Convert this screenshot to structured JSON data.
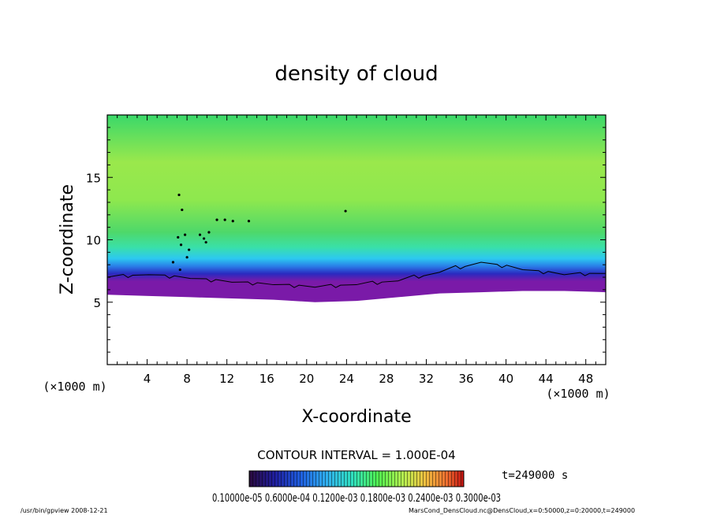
{
  "chart_data": {
    "type": "heatmap",
    "title": "density of cloud",
    "xlabel": "X-coordinate",
    "ylabel": "Z-coordinate",
    "x_unit": "(×1000 m)",
    "z_unit": "(×1000 m)",
    "xlim": [
      0,
      50
    ],
    "ylim": [
      0,
      20
    ],
    "x_ticks": [
      "4",
      "8",
      "12",
      "16",
      "20",
      "24",
      "28",
      "32",
      "36",
      "40",
      "44",
      "48"
    ],
    "y_ticks": [
      "5",
      "10",
      "15"
    ],
    "contour_interval": "CONTOUR INTERVAL = 1.000E-04",
    "time_label": "t=249000 s",
    "colorbar_labels": "0.10000e-05 0.6000e-04 0.1200e-03 0.1800e-03 0.2400e-03 0.3000e-03",
    "colorbar_colors": [
      "#2a0a3c",
      "#1f1fa0",
      "#1f5fe0",
      "#2fb0f0",
      "#30e0c0",
      "#50f050",
      "#b8f050",
      "#f0c040",
      "#f07030",
      "#c01010"
    ],
    "cloud_base_z": [
      5.6,
      5.5,
      5.4,
      5.3,
      5.2,
      5.0,
      5.1,
      5.4,
      5.7,
      5.8,
      5.9,
      5.9,
      5.8
    ],
    "contour_top_z": [
      7.0,
      7.2,
      6.9,
      6.6,
      6.4,
      6.2,
      6.4,
      6.7,
      7.4,
      8.2,
      7.6,
      7.2,
      7.3
    ],
    "footer_left": "/usr/bin/gpview   2008-12-21",
    "footer_right": "MarsCond_DensCloud.nc@DensCloud,x=0:50000,z=0:20000,t=249000"
  }
}
